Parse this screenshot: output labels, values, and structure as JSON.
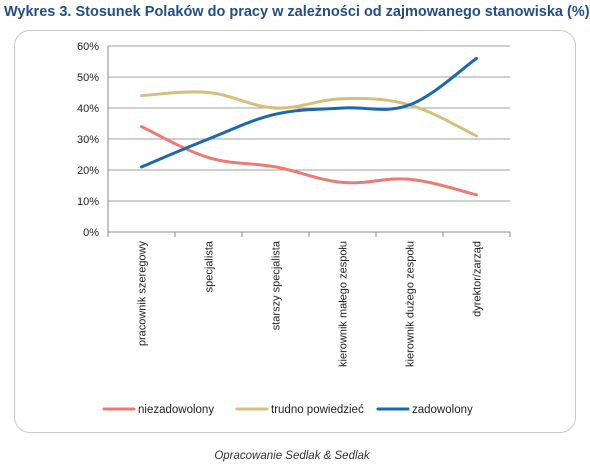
{
  "title": "Wykres 3. Stosunek Polaków do pracy w zależności od zajmowanego stanowiska (%)",
  "source": "Opracowanie Sedlak & Sedlak",
  "colors": {
    "niezadowolony": "#ee7a74",
    "trudno": "#d6bf78",
    "zadowolony": "#1a68ad",
    "grid": "#a0a0a0",
    "title": "#1f4e8c"
  },
  "chart_data": {
    "type": "line",
    "title": "Wykres 3. Stosunek Polaków do pracy w zależności od zajmowanego stanowiska (%)",
    "categories": [
      "pracownik szeregowy",
      "specjalista",
      "starszy specjalista",
      "kierownik małego zespołu",
      "kierownik dużego zespołu",
      "dyrektor/zarząd"
    ],
    "series": [
      {
        "name": "niezadowolony",
        "color": "#ee7a74",
        "values": [
          34,
          24,
          21,
          16,
          17,
          12
        ]
      },
      {
        "name": "trudno powiedzieć",
        "color": "#d6bf78",
        "values": [
          44,
          45,
          40,
          43,
          41,
          31
        ]
      },
      {
        "name": "zadowolony",
        "color": "#1a68ad",
        "values": [
          21,
          30,
          38,
          40,
          41,
          56
        ]
      }
    ],
    "y_ticks": [
      "0%",
      "10%",
      "20%",
      "30%",
      "40%",
      "50%",
      "60%"
    ],
    "ylim": [
      0,
      60
    ],
    "grid": true,
    "smooth": true,
    "legend_position": "bottom"
  }
}
